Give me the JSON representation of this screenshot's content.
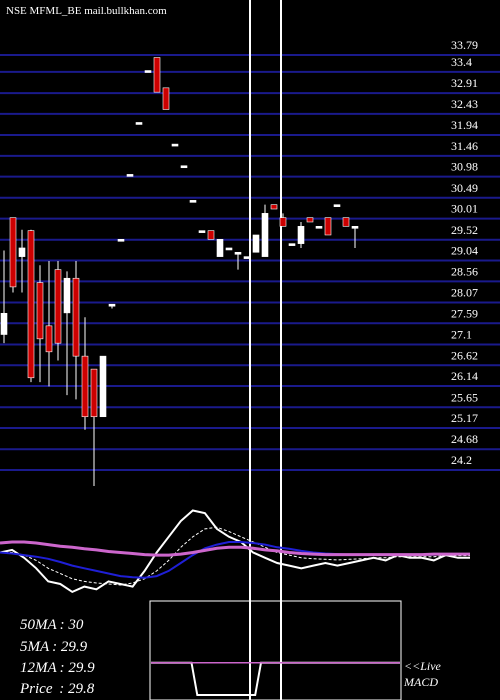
{
  "header": {
    "ticker": "NSE MFML_BE mail.bullkhan.com"
  },
  "chart_data": [
    {
      "type": "candlestick",
      "title": "NSE MFML_BE mail.bullkhan.com",
      "y_ticks": [
        33.79,
        33.4,
        32.91,
        32.43,
        31.94,
        31.46,
        30.98,
        30.49,
        30.01,
        29.52,
        29.04,
        28.56,
        28.07,
        27.59,
        27.1,
        26.62,
        26.14,
        25.65,
        25.17,
        24.68,
        24.2
      ],
      "ylim": [
        24.2,
        33.79
      ],
      "grid": true,
      "candles": [
        {
          "open": 27.1,
          "close": 27.59,
          "high": 29.04,
          "low": 26.9,
          "color": "#ffffff"
        },
        {
          "open": 29.8,
          "close": 28.2,
          "high": 29.8,
          "low": 28.07,
          "color": "#cc0000"
        },
        {
          "open": 28.9,
          "close": 29.1,
          "high": 29.52,
          "low": 28.07,
          "color": "#ffffff"
        },
        {
          "open": 29.5,
          "close": 26.1,
          "high": 29.52,
          "low": 26.0,
          "color": "#cc0000"
        },
        {
          "open": 28.3,
          "close": 27.0,
          "high": 28.7,
          "low": 26.0,
          "color": "#cc0000"
        },
        {
          "open": 27.3,
          "close": 26.7,
          "high": 28.8,
          "low": 25.9,
          "color": "#cc0000"
        },
        {
          "open": 28.6,
          "close": 26.9,
          "high": 28.8,
          "low": 26.5,
          "color": "#cc0000"
        },
        {
          "open": 27.6,
          "close": 28.4,
          "high": 28.56,
          "low": 25.7,
          "color": "#ffffff"
        },
        {
          "open": 28.4,
          "close": 26.6,
          "high": 28.8,
          "low": 25.6,
          "color": "#cc0000"
        },
        {
          "open": 26.6,
          "close": 25.2,
          "high": 27.5,
          "low": 24.9,
          "color": "#cc0000"
        },
        {
          "open": 26.3,
          "close": 25.2,
          "high": 26.3,
          "low": 23.6,
          "color": "#cc0000"
        },
        {
          "open": 25.2,
          "close": 26.6,
          "high": 26.6,
          "low": 25.2,
          "color": "#ffffff"
        },
        {
          "open": 27.8,
          "close": 27.8,
          "high": 27.8,
          "low": 27.7,
          "color": "#ffffff"
        },
        {
          "open": 29.3,
          "close": 29.3,
          "high": 29.3,
          "low": 29.3,
          "color": "#ffffff"
        },
        {
          "open": 30.8,
          "close": 30.8,
          "high": 30.8,
          "low": 30.8,
          "color": "#ffffff"
        },
        {
          "open": 32.0,
          "close": 32.0,
          "high": 32.0,
          "low": 32.0,
          "color": "#ffffff"
        },
        {
          "open": 33.2,
          "close": 33.2,
          "high": 33.2,
          "low": 33.2,
          "color": "#ffffff"
        },
        {
          "open": 33.5,
          "close": 32.7,
          "high": 33.5,
          "low": 32.7,
          "color": "#cc0000"
        },
        {
          "open": 32.8,
          "close": 32.3,
          "high": 32.8,
          "low": 32.3,
          "color": "#cc0000"
        },
        {
          "open": 31.5,
          "close": 31.5,
          "high": 31.5,
          "low": 31.5,
          "color": "#ffffff"
        },
        {
          "open": 31.0,
          "close": 31.0,
          "high": 31.0,
          "low": 31.0,
          "color": "#ffffff"
        },
        {
          "open": 30.2,
          "close": 30.2,
          "high": 30.2,
          "low": 30.2,
          "color": "#ffffff"
        },
        {
          "open": 29.5,
          "close": 29.5,
          "high": 29.5,
          "low": 29.5,
          "color": "#ffffff"
        },
        {
          "open": 29.5,
          "close": 29.3,
          "high": 29.5,
          "low": 29.3,
          "color": "#cc0000"
        },
        {
          "open": 28.9,
          "close": 29.3,
          "high": 29.3,
          "low": 28.9,
          "color": "#ffffff"
        },
        {
          "open": 29.1,
          "close": 29.1,
          "high": 29.1,
          "low": 29.1,
          "color": "#ffffff"
        },
        {
          "open": 29.0,
          "close": 29.0,
          "high": 29.0,
          "low": 28.6,
          "color": "#ffffff"
        },
        {
          "open": 28.9,
          "close": 28.9,
          "high": 28.9,
          "low": 28.9,
          "color": "#ffffff"
        },
        {
          "open": 29.0,
          "close": 29.4,
          "high": 29.4,
          "low": 29.0,
          "color": "#ffffff"
        },
        {
          "open": 28.9,
          "close": 29.9,
          "high": 30.1,
          "low": 28.9,
          "color": "#ffffff"
        },
        {
          "open": 30.1,
          "close": 30.0,
          "high": 30.1,
          "low": 30.0,
          "color": "#cc0000"
        },
        {
          "open": 29.8,
          "close": 29.6,
          "high": 29.9,
          "low": 29.6,
          "color": "#cc0000"
        },
        {
          "open": 29.2,
          "close": 29.2,
          "high": 29.2,
          "low": 29.2,
          "color": "#ffffff"
        },
        {
          "open": 29.2,
          "close": 29.6,
          "high": 29.7,
          "low": 29.1,
          "color": "#ffffff"
        },
        {
          "open": 29.8,
          "close": 29.7,
          "high": 29.8,
          "low": 29.7,
          "color": "#cc0000"
        },
        {
          "open": 29.6,
          "close": 29.6,
          "high": 29.6,
          "low": 29.6,
          "color": "#ffffff"
        },
        {
          "open": 29.8,
          "close": 29.4,
          "high": 29.8,
          "low": 29.4,
          "color": "#cc0000"
        },
        {
          "open": 30.1,
          "close": 30.1,
          "high": 30.1,
          "low": 30.1,
          "color": "#ffffff"
        },
        {
          "open": 29.8,
          "close": 29.6,
          "high": 29.8,
          "low": 29.6,
          "color": "#cc0000"
        },
        {
          "open": 29.6,
          "close": 29.6,
          "high": 29.6,
          "low": 29.1,
          "color": "#ffffff"
        }
      ]
    },
    {
      "type": "line",
      "title": "",
      "ylim": [
        -1,
        1
      ],
      "series": [
        {
          "name": "",
          "color": "#ffffff",
          "values": [
            0.0,
            0.05,
            -0.1,
            -0.3,
            -0.55,
            -0.6,
            -0.75,
            -0.65,
            -0.7,
            -0.55,
            -0.6,
            -0.65,
            -0.35,
            0.0,
            0.3,
            0.6,
            0.8,
            0.75,
            0.45,
            0.3,
            0.2,
            0.0,
            -0.1,
            -0.2,
            -0.25,
            -0.3,
            -0.25,
            -0.2,
            -0.25,
            -0.2,
            -0.15,
            -0.1,
            -0.15,
            -0.05,
            -0.1,
            -0.1,
            -0.15,
            -0.05,
            -0.1,
            -0.1
          ]
        },
        {
          "name": "",
          "color": "#ffffff",
          "values": [
            0.0,
            0.0,
            -0.05,
            -0.15,
            -0.3,
            -0.4,
            -0.5,
            -0.55,
            -0.58,
            -0.6,
            -0.62,
            -0.58,
            -0.5,
            -0.35,
            -0.15,
            0.1,
            0.3,
            0.45,
            0.48,
            0.4,
            0.3,
            0.2,
            0.1,
            0.0,
            -0.05,
            -0.1,
            -0.12,
            -0.13,
            -0.14,
            -0.13,
            -0.12,
            -0.1,
            -0.1,
            -0.08,
            -0.08,
            -0.08,
            -0.08,
            -0.06,
            -0.06,
            -0.06
          ]
        },
        {
          "name": "",
          "color": "#1f1fd6",
          "values": [
            0.0,
            -0.02,
            -0.05,
            -0.08,
            -0.12,
            -0.18,
            -0.25,
            -0.3,
            -0.35,
            -0.4,
            -0.45,
            -0.47,
            -0.48,
            -0.45,
            -0.35,
            -0.2,
            -0.05,
            0.08,
            0.15,
            0.2,
            0.2,
            0.18,
            0.15,
            0.1,
            0.07,
            0.03,
            0.0,
            -0.02,
            -0.03,
            -0.04,
            -0.04,
            -0.04,
            -0.04,
            -0.04,
            -0.04,
            -0.04,
            -0.04,
            -0.03,
            -0.03,
            -0.03
          ]
        },
        {
          "name": "",
          "color": "#cc66cc",
          "values": [
            0.18,
            0.2,
            0.2,
            0.18,
            0.15,
            0.12,
            0.1,
            0.07,
            0.05,
            0.02,
            0.0,
            -0.02,
            -0.04,
            -0.05,
            -0.05,
            -0.03,
            0.0,
            0.04,
            0.08,
            0.1,
            0.1,
            0.08,
            0.05,
            0.03,
            0.0,
            -0.02,
            -0.03,
            -0.04,
            -0.04,
            -0.04,
            -0.04,
            -0.04,
            -0.04,
            -0.04,
            -0.04,
            -0.04,
            -0.03,
            -0.03,
            -0.03,
            -0.03
          ]
        }
      ]
    },
    {
      "type": "line",
      "title": "",
      "ylim": [
        -1,
        1
      ],
      "series": [
        {
          "name": "",
          "color": "#ffffff",
          "values": [
            0.2,
            0.2,
            0.2,
            0.2,
            0.2,
            0.2,
            0.2,
            0.2,
            -1.0,
            -1.0,
            -1.0,
            -1.0,
            -1.0,
            -1.0,
            -1.0,
            -1.0,
            -1.0,
            -1.0,
            -1.0,
            0.2,
            0.2,
            0.2,
            0.2,
            0.2,
            0.2,
            0.2,
            0.2,
            0.2,
            0.2,
            0.2,
            0.2,
            0.2,
            0.2,
            0.2,
            0.2,
            0.2,
            0.2,
            0.2,
            0.2,
            0.2,
            0.2,
            0.2,
            0.2,
            0.2
          ]
        },
        {
          "name": "",
          "color": "#cc66cc",
          "values": [
            0.2,
            0.2,
            0.2,
            0.2,
            0.2,
            0.2,
            0.2,
            0.2,
            0.2,
            0.2,
            0.2,
            0.2,
            0.2,
            0.2,
            0.2,
            0.2,
            0.2,
            0.2,
            0.2,
            0.2,
            0.2,
            0.2,
            0.2,
            0.2,
            0.2,
            0.2,
            0.2,
            0.2,
            0.2,
            0.2,
            0.2,
            0.2,
            0.2,
            0.2,
            0.2,
            0.2,
            0.2,
            0.2,
            0.2,
            0.2,
            0.2,
            0.2,
            0.2,
            0.2
          ]
        }
      ]
    }
  ],
  "stats": [
    {
      "label": "50MA",
      "value": ": 30"
    },
    {
      "label": "5MA",
      "value": ": 29.9"
    },
    {
      "label": "12MA",
      "value": ": 29.9"
    },
    {
      "label": "Price",
      "value": "  : 29.8"
    }
  ],
  "macd_label": {
    "line1": "<<Live",
    "line2": "MACD"
  },
  "colors": {
    "background": "#000000",
    "grid": "#1a1a8c",
    "up": "#ffffff",
    "down": "#cc0000",
    "cursor": "#ffffff"
  }
}
